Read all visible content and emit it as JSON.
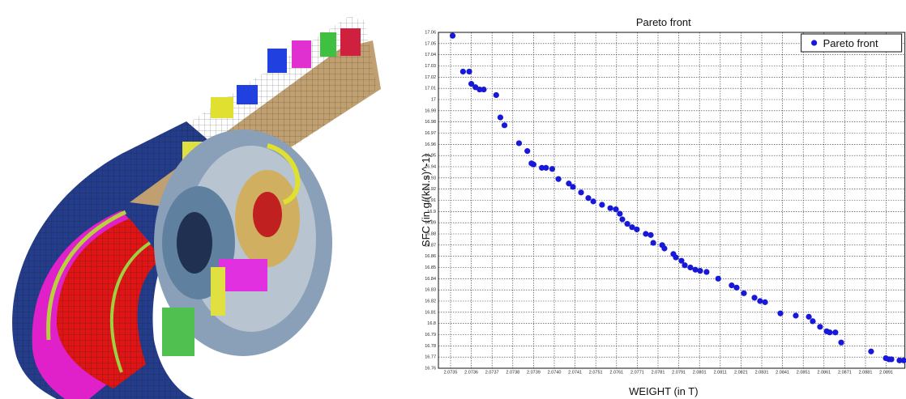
{
  "chart_data": {
    "type": "scatter",
    "title": "Pareto front",
    "x_label": "WEIGHT (in T)",
    "y_label": "SFC (in g/(kN.s)^-1)",
    "xlim": [
      2.0735,
      2.09
    ],
    "ylim": [
      16.76,
      17.06
    ],
    "xticks": [
      2.0735,
      2.0736,
      2.0737,
      2.0738,
      2.0739,
      {
        "value": 2.074,
        "label": "2.0740"
      },
      2.0741,
      2.0751,
      2.0761,
      2.0771,
      2.0781,
      2.0791,
      2.0801,
      2.0811,
      2.0821,
      2.0831,
      2.0841,
      2.0851,
      2.0861,
      2.0871,
      2.0881,
      2.0891
    ],
    "yticks": [
      17.06,
      17.05,
      17.04,
      17.03,
      17.02,
      17.01,
      17,
      16.99,
      16.98,
      16.97,
      16.96,
      16.95,
      16.94,
      16.93,
      16.92,
      16.91,
      16.9,
      16.89,
      16.88,
      16.87,
      16.86,
      16.85,
      16.84,
      16.83,
      16.82,
      16.81,
      16.8,
      16.79,
      16.78,
      16.77,
      16.76
    ],
    "grid": true,
    "legend": "upper right",
    "x": [
      2.07351,
      2.07356,
      2.07359,
      2.0736,
      2.07362,
      2.07364,
      2.07366,
      2.07372,
      2.07374,
      2.07376,
      2.07383,
      2.07387,
      2.07389,
      2.0739,
      2.07394,
      2.07396,
      2.07399,
      2.07402,
      2.07407,
      2.07409,
      2.07439,
      2.07474,
      2.07498,
      2.0754,
      2.0758,
      2.07607,
      2.07626,
      2.07638,
      2.07662,
      2.07685,
      2.07708,
      2.07751,
      2.07775,
      2.07787,
      2.0783,
      2.07841,
      2.07884,
      2.07896,
      2.07923,
      2.07939,
      2.07966,
      2.0799,
      2.08013,
      2.08044,
      2.081,
      2.08165,
      2.08189,
      2.08224,
      2.08275,
      2.08302,
      2.08326,
      2.084,
      2.08474,
      2.08537,
      2.08556,
      2.08591,
      2.08623,
      2.08638,
      2.08665,
      2.08693,
      2.08837,
      2.08908,
      2.08923,
      2.08935,
      2.08974,
      2.08994
    ],
    "series": [
      {
        "name": "Pareto front",
        "color": "#1818d8",
        "values": [
          17.057,
          17.025,
          17.025,
          17.014,
          17.011,
          17.009,
          17.009,
          17.004,
          16.984,
          16.977,
          16.961,
          16.954,
          16.943,
          16.942,
          16.939,
          16.939,
          16.938,
          16.929,
          16.925,
          16.922,
          16.917,
          16.912,
          16.909,
          16.906,
          16.903,
          16.902,
          16.898,
          16.893,
          16.889,
          16.886,
          16.884,
          16.88,
          16.879,
          16.872,
          16.87,
          16.867,
          16.862,
          16.859,
          16.856,
          16.852,
          16.85,
          16.848,
          16.847,
          16.846,
          16.84,
          16.834,
          16.832,
          16.827,
          16.823,
          16.82,
          16.819,
          16.809,
          16.807,
          16.806,
          16.802,
          16.797,
          16.793,
          16.792,
          16.792,
          16.783,
          16.775,
          16.769,
          16.768,
          16.768,
          16.767,
          16.767
        ]
      }
    ]
  }
}
